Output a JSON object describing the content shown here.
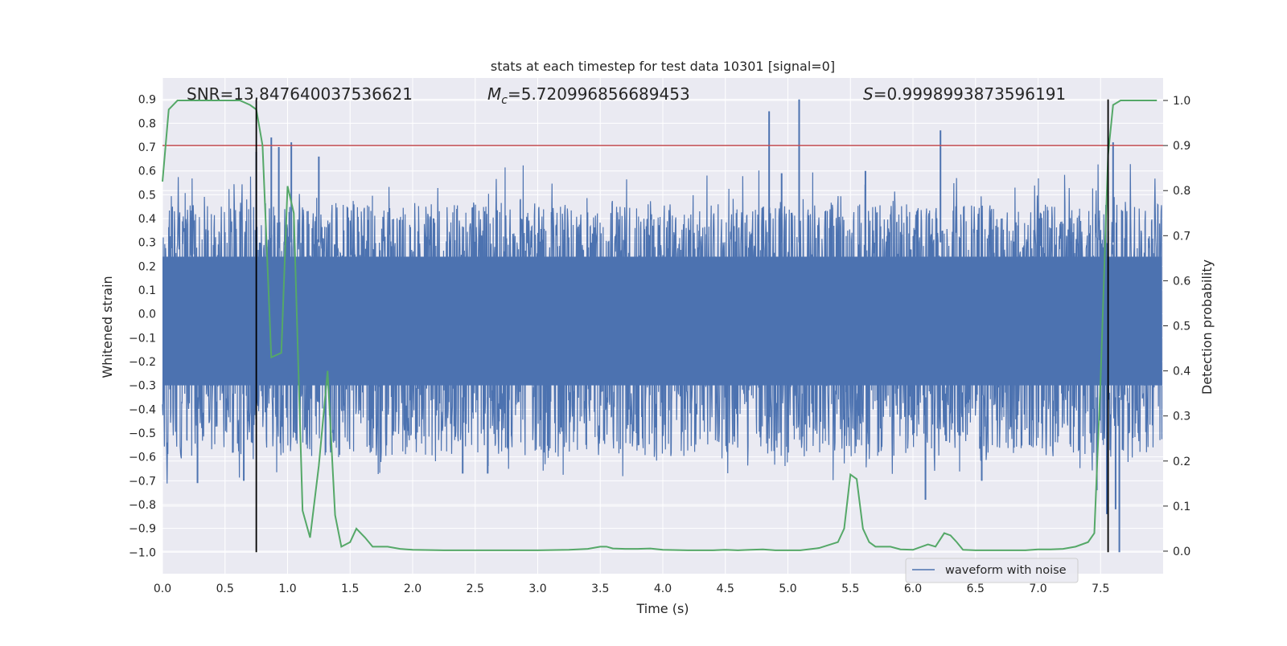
{
  "chart_data": {
    "type": "line",
    "title": "stats at each timestep for test data 10301 [signal=0]",
    "xlabel": "Time (s)",
    "ylabel": "Whitened strain",
    "y2label": "Detection probability",
    "xlim": [
      0.0,
      8.0
    ],
    "ylim": [
      -1.09,
      0.99
    ],
    "y2lim": [
      -0.05,
      1.05
    ],
    "xticks": [
      "0.0",
      "0.5",
      "1.0",
      "1.5",
      "2.0",
      "2.5",
      "3.0",
      "3.5",
      "4.0",
      "4.5",
      "5.0",
      "5.5",
      "6.0",
      "6.5",
      "7.0",
      "7.5"
    ],
    "xtick_values": [
      0.0,
      0.5,
      1.0,
      1.5,
      2.0,
      2.5,
      3.0,
      3.5,
      4.0,
      4.5,
      5.0,
      5.5,
      6.0,
      6.5,
      7.0,
      7.5
    ],
    "yticks": [
      "0.9",
      "0.8",
      "0.7",
      "0.6",
      "0.5",
      "0.4",
      "0.3",
      "0.2",
      "0.1",
      "0.0",
      "−0.1",
      "−0.2",
      "−0.3",
      "−0.4",
      "−0.5",
      "−0.6",
      "−0.7",
      "−0.8",
      "−0.9",
      "−1.0"
    ],
    "ytick_values": [
      0.9,
      0.8,
      0.7,
      0.6,
      0.5,
      0.4,
      0.3,
      0.2,
      0.1,
      0.0,
      -0.1,
      -0.2,
      -0.3,
      -0.4,
      -0.5,
      -0.6,
      -0.7,
      -0.8,
      -0.9,
      -1.0
    ],
    "y2ticks": [
      "1.0",
      "0.9",
      "0.8",
      "0.7",
      "0.6",
      "0.5",
      "0.4",
      "0.3",
      "0.2",
      "0.1",
      "0.0"
    ],
    "y2tick_values": [
      1.0,
      0.9,
      0.8,
      0.7,
      0.6,
      0.5,
      0.4,
      0.3,
      0.2,
      0.1,
      0.0
    ],
    "grid": true,
    "legend": {
      "position": "lower-right",
      "entries": [
        "waveform with noise"
      ]
    },
    "annotations": {
      "snr": "SNR=13.847640037536621",
      "mc_symbol": "M",
      "mc_sub": "c",
      "mc_value": "=5.720996856689453",
      "s_symbol": "S",
      "s_value": "=0.9998993873596191"
    },
    "series": [
      {
        "name": "waveform with noise",
        "axis": "left",
        "style": "dense noise, approx. range -0.45 to 0.33 with spikes",
        "typical_low": -0.42,
        "typical_high": 0.32,
        "spikes": [
          {
            "t": 0.28,
            "v": -0.71
          },
          {
            "t": 0.65,
            "v": -0.7
          },
          {
            "t": 0.75,
            "v": 0.68
          },
          {
            "t": 0.87,
            "v": 0.74
          },
          {
            "t": 0.93,
            "v": 0.7
          },
          {
            "t": 1.03,
            "v": 0.72
          },
          {
            "t": 1.25,
            "v": 0.66
          },
          {
            "t": 2.4,
            "v": -0.67
          },
          {
            "t": 2.6,
            "v": -0.67
          },
          {
            "t": 4.85,
            "v": 0.85
          },
          {
            "t": 4.95,
            "v": 0.59
          },
          {
            "t": 5.09,
            "v": 0.9
          },
          {
            "t": 5.62,
            "v": 0.6
          },
          {
            "t": 6.1,
            "v": -0.78
          },
          {
            "t": 6.22,
            "v": 0.77
          },
          {
            "t": 6.55,
            "v": -0.7
          },
          {
            "t": 7.47,
            "v": -0.74
          },
          {
            "t": 7.55,
            "v": -0.84
          },
          {
            "t": 7.6,
            "v": 0.72
          },
          {
            "t": 7.62,
            "v": -0.82
          },
          {
            "t": 7.65,
            "v": -1.0
          }
        ]
      },
      {
        "name": "detection probability",
        "axis": "right",
        "color": "#55a868",
        "x": [
          0.0,
          0.05,
          0.12,
          0.2,
          0.35,
          0.5,
          0.62,
          0.7,
          0.75,
          0.8,
          0.87,
          0.95,
          1.0,
          1.05,
          1.12,
          1.18,
          1.25,
          1.32,
          1.38,
          1.43,
          1.5,
          1.55,
          1.62,
          1.68,
          1.8,
          1.9,
          2.0,
          2.25,
          2.5,
          2.75,
          3.0,
          3.25,
          3.4,
          3.5,
          3.55,
          3.6,
          3.7,
          3.8,
          3.9,
          4.0,
          4.2,
          4.4,
          4.5,
          4.6,
          4.7,
          4.8,
          4.9,
          5.0,
          5.1,
          5.25,
          5.4,
          5.45,
          5.5,
          5.55,
          5.6,
          5.65,
          5.7,
          5.75,
          5.82,
          5.9,
          6.0,
          6.05,
          6.12,
          6.18,
          6.25,
          6.3,
          6.35,
          6.4,
          6.5,
          6.6,
          6.75,
          6.9,
          7.0,
          7.1,
          7.2,
          7.3,
          7.4,
          7.45,
          7.5,
          7.56,
          7.6,
          7.66,
          7.75,
          7.8,
          7.88,
          7.95
        ],
        "values": [
          0.82,
          0.98,
          1.0,
          1.0,
          1.0,
          1.0,
          1.0,
          0.99,
          0.98,
          0.9,
          0.43,
          0.44,
          0.81,
          0.75,
          0.09,
          0.03,
          0.19,
          0.4,
          0.08,
          0.01,
          0.02,
          0.05,
          0.03,
          0.01,
          0.01,
          0.005,
          0.003,
          0.002,
          0.002,
          0.002,
          0.002,
          0.003,
          0.005,
          0.01,
          0.01,
          0.006,
          0.005,
          0.005,
          0.006,
          0.003,
          0.002,
          0.002,
          0.003,
          0.002,
          0.003,
          0.004,
          0.002,
          0.002,
          0.002,
          0.007,
          0.02,
          0.05,
          0.17,
          0.16,
          0.05,
          0.02,
          0.01,
          0.01,
          0.01,
          0.004,
          0.003,
          0.008,
          0.015,
          0.01,
          0.04,
          0.035,
          0.02,
          0.003,
          0.002,
          0.002,
          0.002,
          0.002,
          0.004,
          0.004,
          0.005,
          0.01,
          0.02,
          0.04,
          0.38,
          0.88,
          0.99,
          1.0,
          1.0,
          1.0,
          1.0,
          1.0
        ]
      }
    ],
    "hlines": [
      {
        "name": "threshold",
        "axis": "right",
        "value": 0.9,
        "color": "#c44e52"
      }
    ],
    "vlines": [
      {
        "name": "event-start",
        "x": 0.75,
        "color": "#000000",
        "ymin": -1.0,
        "ymax": 0.9
      },
      {
        "name": "event-end",
        "x": 7.56,
        "color": "#000000",
        "ymin": -1.0,
        "ymax": 0.9
      }
    ],
    "colors": {
      "waveform": "#4c72b0",
      "probability": "#55a868",
      "threshold": "#c44e52",
      "plot_bg": "#eaeaf2",
      "grid": "#ffffff"
    }
  }
}
